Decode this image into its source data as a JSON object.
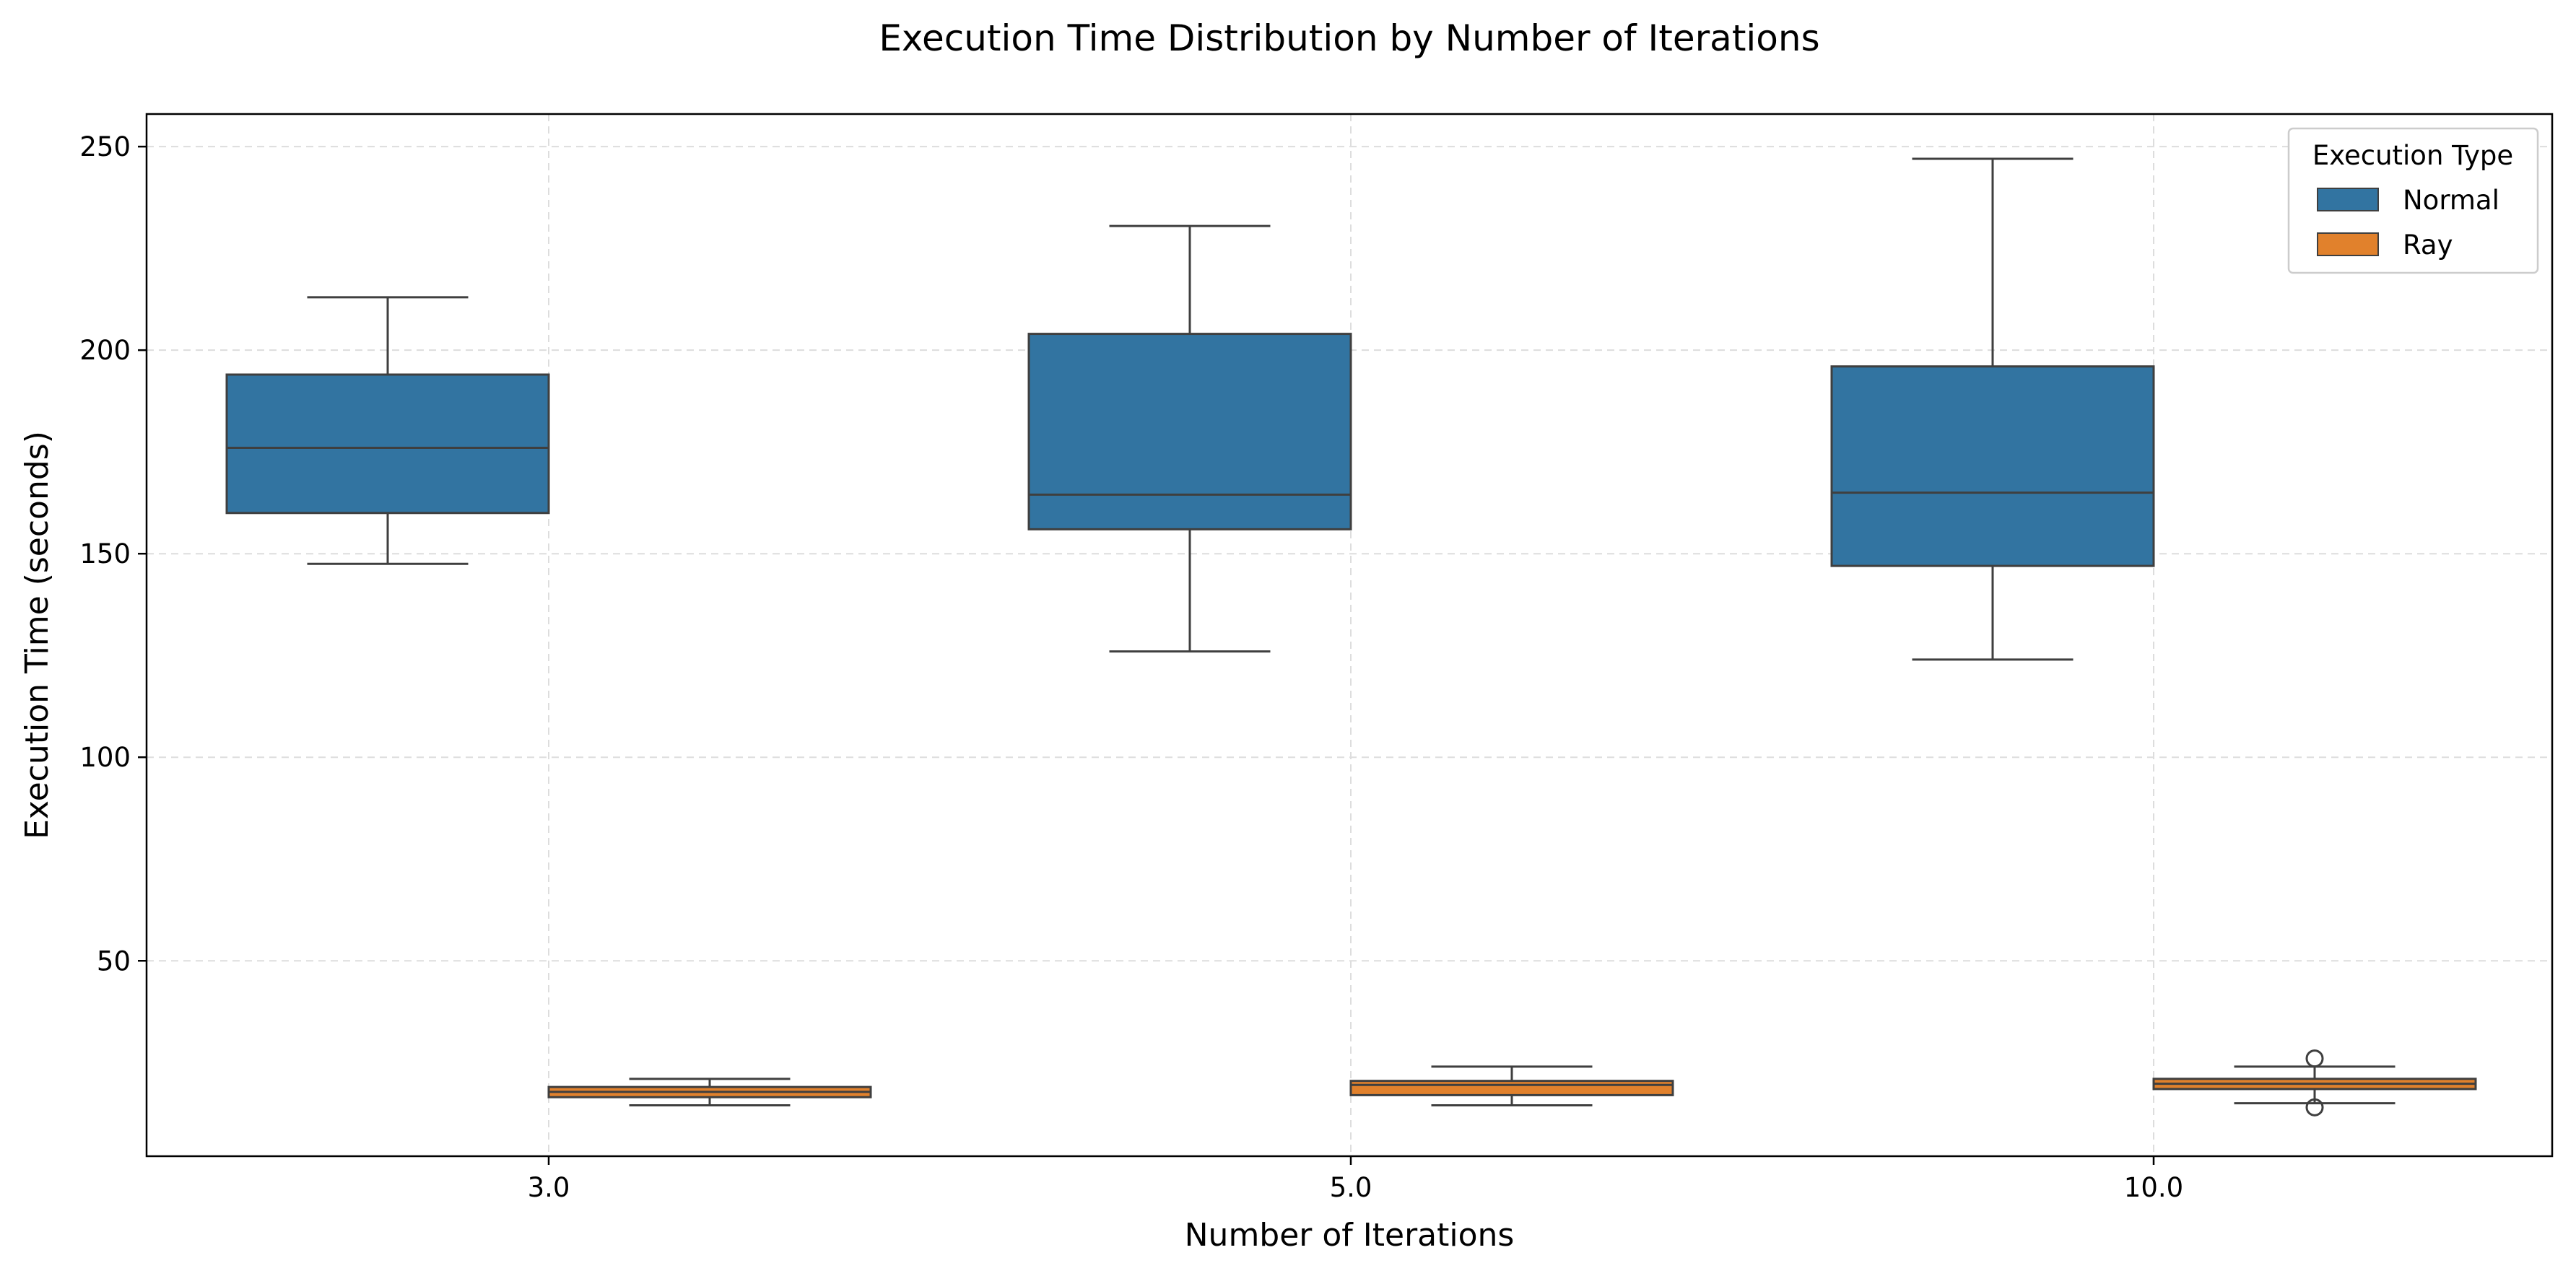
{
  "chart_data": {
    "type": "box",
    "title": "Execution Time Distribution by Number of Iterations",
    "xlabel": "Number of Iterations",
    "ylabel": "Execution Time (seconds)",
    "categories": [
      "3.0",
      "5.0",
      "10.0"
    ],
    "ylim": [
      2,
      258
    ],
    "yticks": [
      50,
      100,
      150,
      200,
      250
    ],
    "grid": true,
    "legend": {
      "title": "Execution Type",
      "placement": "top-right"
    },
    "series": [
      {
        "name": "Normal",
        "color": "#3274a1",
        "boxes": [
          {
            "whisker_low": 147.5,
            "q1": 160,
            "median": 176,
            "q3": 194,
            "whisker_high": 213,
            "outliers": []
          },
          {
            "whisker_low": 126,
            "q1": 156,
            "median": 164.5,
            "q3": 204,
            "whisker_high": 230.5,
            "outliers": []
          },
          {
            "whisker_low": 124,
            "q1": 147,
            "median": 165,
            "q3": 196,
            "whisker_high": 247,
            "outliers": []
          }
        ]
      },
      {
        "name": "Ray",
        "color": "#e1812c",
        "boxes": [
          {
            "whisker_low": 14.5,
            "q1": 16.5,
            "median": 17.8,
            "q3": 19,
            "whisker_high": 21,
            "outliers": []
          },
          {
            "whisker_low": 14.5,
            "q1": 17,
            "median": 19.5,
            "q3": 20.5,
            "whisker_high": 24,
            "outliers": []
          },
          {
            "whisker_low": 15,
            "q1": 18.5,
            "median": 19.8,
            "q3": 21,
            "whisker_high": 24,
            "outliers": [
              26,
              14
            ]
          }
        ]
      }
    ]
  }
}
